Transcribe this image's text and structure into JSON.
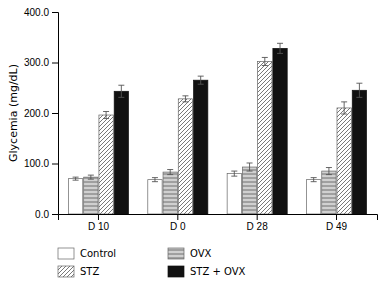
{
  "chart_data": {
    "type": "bar",
    "categories": [
      "D 10",
      "D 0",
      "D 28",
      "D 49"
    ],
    "series": [
      {
        "name": "Control",
        "color": "#ffffff",
        "values": [
          70,
          68,
          80,
          68
        ],
        "errors": [
          3,
          4,
          5,
          4
        ]
      },
      {
        "name": "OVX",
        "color": "#d0d0d0",
        "values": [
          73,
          83,
          93,
          85
        ],
        "errors": [
          4,
          5,
          8,
          7
        ]
      },
      {
        "name": "STZ",
        "color": "#ffffff",
        "values": [
          196,
          228,
          302,
          210
        ],
        "errors": [
          7,
          6,
          8,
          12
        ]
      },
      {
        "name": "STZ + OVX",
        "color": "#111111",
        "values": [
          243,
          265,
          328,
          245
        ],
        "errors": [
          12,
          8,
          10,
          14
        ]
      }
    ],
    "y_label": "Glycemia (mg/dL)",
    "ylim": [
      0,
      400
    ],
    "yticks": [
      {
        "value": 0,
        "label": "0.0"
      },
      {
        "value": 100,
        "label": "100.0"
      },
      {
        "value": 200,
        "label": "200.0"
      },
      {
        "value": 300,
        "label": "300.0"
      },
      {
        "value": 400,
        "label": "400.0"
      }
    ],
    "grid": false,
    "legend": "bottom"
  }
}
